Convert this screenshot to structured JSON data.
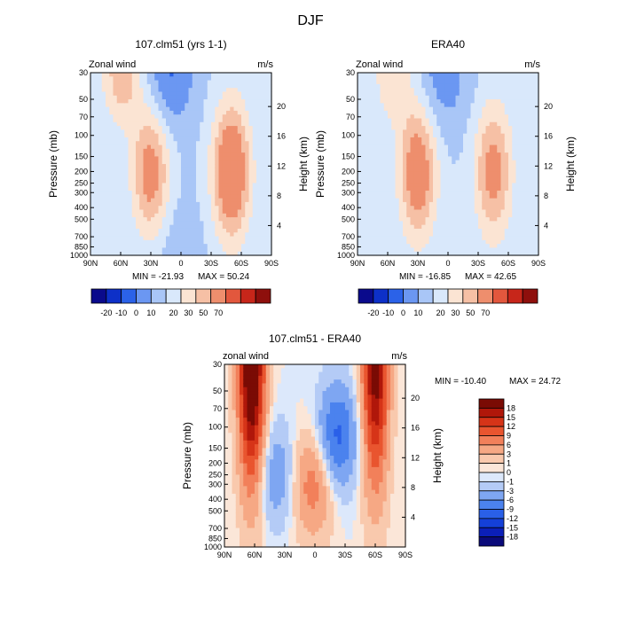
{
  "figure": {
    "title": "DJF"
  },
  "chart_data": [
    {
      "type": "heatmap",
      "title": "107.clm51 (yrs 1-1)",
      "label": "Zonal wind",
      "units": "m/s",
      "xlabel": "",
      "ylabel": "Pressure (mb)",
      "ylabel_right": "Height (km)",
      "x_ticks": [
        "90N",
        "60N",
        "30N",
        "0",
        "30S",
        "60S",
        "90S"
      ],
      "y_ticks": [
        "30",
        "50",
        "70",
        "100",
        "150",
        "200",
        "250",
        "300",
        "400",
        "500",
        "700",
        "850",
        "1000"
      ],
      "height_ticks": [
        "20",
        "16",
        "12",
        "8",
        "4"
      ],
      "min_text": "MIN = -21.93",
      "max_text": "MAX = 50.24",
      "min": -21.93,
      "max": 50.24,
      "levels": [
        -20,
        -10,
        0,
        10,
        20,
        30,
        50,
        70
      ],
      "colorbar_labels": [
        "-20",
        "-10",
        "0",
        "10",
        "20",
        "30",
        "50",
        "70"
      ],
      "features": [
        {
          "kind": "jet",
          "lat": 58,
          "pressure": 30,
          "peak": 28
        },
        {
          "kind": "jet",
          "lat": 30,
          "pressure": 200,
          "peak": 38
        },
        {
          "kind": "jet",
          "lat": -50,
          "pressure": 200,
          "peak": 50
        },
        {
          "kind": "easterly",
          "lat": 12,
          "pressure": 30,
          "peak": -22
        },
        {
          "kind": "easterly",
          "lat": 5,
          "pressure": 1000,
          "peak": -8
        }
      ]
    },
    {
      "type": "heatmap",
      "title": "ERA40",
      "label": "Zonal wind",
      "units": "m/s",
      "xlabel": "",
      "ylabel": "Pressure (mb)",
      "ylabel_right": "Height (km)",
      "x_ticks": [
        "90N",
        "60N",
        "30N",
        "0",
        "30S",
        "60S",
        "90S"
      ],
      "y_ticks": [
        "30",
        "50",
        "70",
        "100",
        "150",
        "200",
        "250",
        "300",
        "400",
        "500",
        "700",
        "850",
        "1000"
      ],
      "height_ticks": [
        "20",
        "16",
        "12",
        "8",
        "4"
      ],
      "min_text": "MIN = -16.85",
      "max_text": "MAX = 42.65",
      "min": -16.85,
      "max": 42.65,
      "levels": [
        -20,
        -10,
        0,
        10,
        20,
        30,
        50,
        70
      ],
      "colorbar_labels": [
        "-20",
        "-10",
        "0",
        "10",
        "20",
        "30",
        "50",
        "70"
      ],
      "features": [
        {
          "kind": "jet",
          "lat": 30,
          "pressure": 200,
          "peak": 42
        },
        {
          "kind": "jet",
          "lat": -45,
          "pressure": 200,
          "peak": 36
        },
        {
          "kind": "jet",
          "lat": 55,
          "pressure": 30,
          "peak": 18
        },
        {
          "kind": "easterly",
          "lat": 5,
          "pressure": 30,
          "peak": -17
        }
      ]
    },
    {
      "type": "heatmap",
      "title": "107.clm51 - ERA40",
      "label": "zonal wind",
      "units": "m/s",
      "xlabel": "",
      "ylabel": "Pressure (mb)",
      "ylabel_right": "Height (km)",
      "x_ticks": [
        "90N",
        "60N",
        "30N",
        "0",
        "30S",
        "60S",
        "90S"
      ],
      "y_ticks": [
        "30",
        "50",
        "70",
        "100",
        "150",
        "200",
        "250",
        "300",
        "400",
        "500",
        "700",
        "850",
        "1000"
      ],
      "height_ticks": [
        "20",
        "16",
        "12",
        "8",
        "4"
      ],
      "min_text": "MIN = -10.40",
      "max_text": "MAX =  24.72",
      "min": -10.4,
      "max": 24.72,
      "levels": [
        -18,
        -15,
        -12,
        -9,
        -6,
        -3,
        -1,
        0,
        1,
        3,
        6,
        9,
        12,
        15,
        18
      ],
      "colorbar_labels": [
        "18",
        "15",
        "12",
        "9",
        "6",
        "3",
        "1",
        "0",
        "-1",
        "-3",
        "-6",
        "-9",
        "-12",
        "-15",
        "-18"
      ],
      "features": [
        {
          "kind": "diff_pos",
          "lat": 63,
          "pressure": 30,
          "peak": 24
        },
        {
          "kind": "diff_pos",
          "lat": -60,
          "pressure": 30,
          "peak": 20
        },
        {
          "kind": "diff_pos",
          "lat": 2,
          "pressure": 300,
          "peak": 8
        },
        {
          "kind": "diff_neg",
          "lat": -22,
          "pressure": 120,
          "peak": -10
        },
        {
          "kind": "diff_neg",
          "lat": 38,
          "pressure": 250,
          "peak": -5
        }
      ]
    }
  ],
  "colors": {
    "cmap1": [
      "#0a0a8c",
      "#0d30c8",
      "#2b62e8",
      "#6b97f2",
      "#a9c6f7",
      "#d9e8fb",
      "#fbe4d3",
      "#f6c0a5",
      "#ee8e6d",
      "#e2573d",
      "#c7261a",
      "#8e0f0c"
    ],
    "cmap2": [
      "#0a0a7a",
      "#0b1fb8",
      "#1440d8",
      "#2a60e8",
      "#4b82ee",
      "#7ea6f2",
      "#b4cbf6",
      "#dce8fb",
      "#fbe6d8",
      "#f9c9ad",
      "#f6a884",
      "#f2805a",
      "#e9552f",
      "#d63418",
      "#b0170a",
      "#7a0b04"
    ]
  }
}
